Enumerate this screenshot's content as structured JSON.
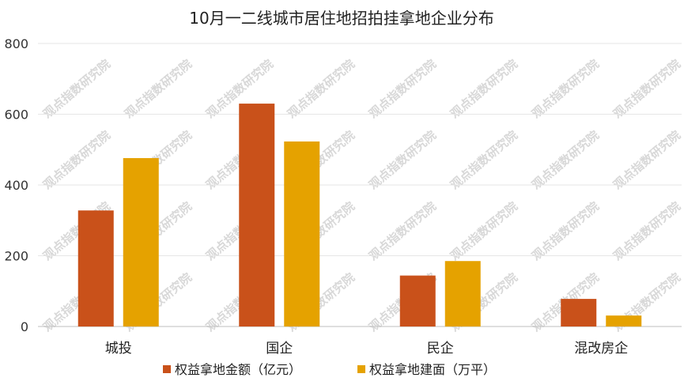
{
  "chart_data": {
    "type": "bar",
    "title": "10月一二线城市居住地招拍挂拿地企业分布",
    "categories": [
      "城投",
      "国企",
      "民企",
      "混改房企"
    ],
    "series": [
      {
        "name": "权益拿地金额（亿元）",
        "color": "#C9511A",
        "values": [
          328,
          630,
          144,
          78
        ]
      },
      {
        "name": "权益拿地建面（万平）",
        "color": "#E5A200",
        "values": [
          476,
          523,
          185,
          31
        ]
      }
    ],
    "yticks": [
      "0",
      "200",
      "400",
      "600",
      "800"
    ],
    "ylim": [
      0,
      800
    ],
    "grid": true,
    "legend": "bottom"
  },
  "watermark": "观点指数研究院"
}
